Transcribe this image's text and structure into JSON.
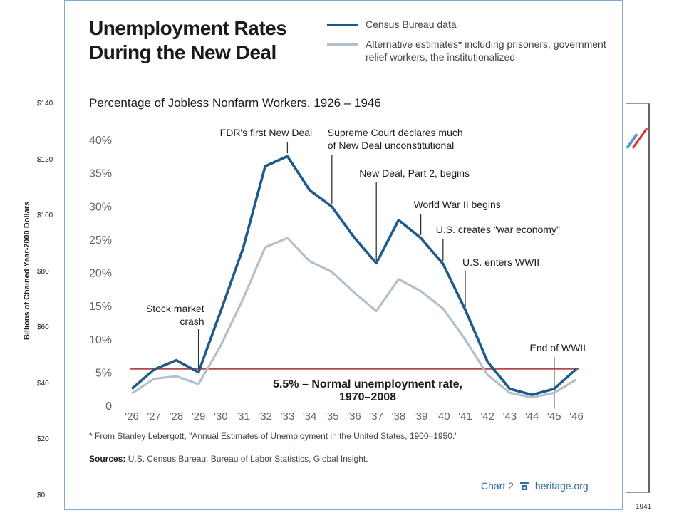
{
  "background_chart": {
    "ylabel": "Billions of Chained Year-2000 Dollars",
    "yticks": [
      "$140",
      "$120",
      "$100",
      "$80",
      "$60",
      "$40",
      "$20",
      "$0"
    ],
    "xtick_visible": "1941"
  },
  "card": {
    "title_line1": "Unemployment Rates",
    "title_line2": "During the New Deal",
    "subtitle": "Percentage of Jobless Nonfarm Workers, 1926 – 1946",
    "footnote": "* From Stanley Lebergott, \"Annual Estimates of Unemployment in the United States, 1900–1950.\"",
    "sources_label": "Sources:",
    "sources_text": "U.S. Census Bureau, Bureau of Labor Statistics, Global Insight.",
    "chart_label": "Chart 2",
    "site": "heritage.org",
    "icon": "phone-icon"
  },
  "chart_data": {
    "type": "line",
    "x": [
      "'26",
      "'27",
      "'28",
      "'29",
      "'30",
      "'31",
      "'32",
      "'33",
      "'34",
      "'35",
      "'36",
      "'37",
      "'38",
      "'39",
      "'40",
      "'41",
      "'42",
      "'43",
      "'44",
      "'45",
      "'46"
    ],
    "ylim": [
      0,
      40
    ],
    "yticks": [
      "0",
      "5%",
      "10%",
      "15%",
      "20%",
      "25%",
      "30%",
      "35%",
      "40%"
    ],
    "series": [
      {
        "name": "Census Bureau data",
        "color": "#1f5a8c",
        "values": [
          2.5,
          5.4,
          6.8,
          5.0,
          14.2,
          23.6,
          36.0,
          37.5,
          32.4,
          29.9,
          25.3,
          21.4,
          27.9,
          25.2,
          21.3,
          14.4,
          6.6,
          2.5,
          1.6,
          2.5,
          5.5
        ]
      },
      {
        "name": "Alternative estimates* including prisoners, government relief workers, the institutionalized",
        "color": "#b3c0cc",
        "values": [
          1.8,
          4.0,
          4.4,
          3.2,
          9.0,
          16.0,
          23.8,
          25.2,
          21.7,
          20.1,
          17.0,
          14.2,
          19.0,
          17.2,
          14.6,
          9.9,
          4.6,
          1.9,
          1.2,
          1.9,
          3.9
        ]
      }
    ],
    "reference_line": {
      "value": 5.5,
      "color": "#b5484b",
      "label_line1": "5.5% – Normal unemployment rate,",
      "label_line2": "1970–2008"
    },
    "annotations": [
      {
        "index": 3,
        "lines": [
          "Stock market",
          "crash"
        ]
      },
      {
        "index": 7,
        "lines": [
          "FDR's first New Deal"
        ]
      },
      {
        "index": 9,
        "lines": [
          "Supreme Court declares much",
          "of New Deal unconstitutional"
        ]
      },
      {
        "index": 11,
        "lines": [
          "New Deal, Part 2, begins"
        ]
      },
      {
        "index": 13,
        "lines": [
          "World War II begins"
        ]
      },
      {
        "index": 14,
        "lines": [
          "U.S. creates \"war economy\""
        ]
      },
      {
        "index": 15,
        "lines": [
          "U.S. enters WWII"
        ]
      },
      {
        "index": 19,
        "lines": [
          "End of WWII"
        ]
      }
    ]
  }
}
